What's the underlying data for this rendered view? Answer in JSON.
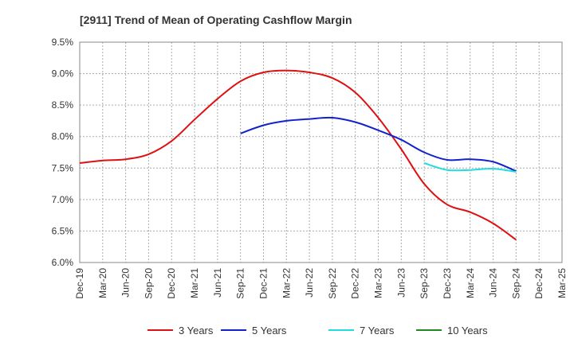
{
  "chart_data": {
    "type": "line",
    "title": "[2911]  Trend of Mean of Operating Cashflow Margin",
    "xlabel": "",
    "ylabel": "",
    "ylim": [
      6.0,
      9.5
    ],
    "y_ticks": [
      "6.0%",
      "6.5%",
      "7.0%",
      "7.5%",
      "8.0%",
      "8.5%",
      "9.0%",
      "9.5%"
    ],
    "categories": [
      "Dec-19",
      "Mar-20",
      "Jun-20",
      "Sep-20",
      "Dec-20",
      "Mar-21",
      "Jun-21",
      "Sep-21",
      "Dec-21",
      "Mar-22",
      "Jun-22",
      "Sep-22",
      "Dec-22",
      "Mar-23",
      "Jun-23",
      "Sep-23",
      "Dec-23",
      "Mar-24",
      "Jun-24",
      "Sep-24",
      "Dec-24",
      "Mar-25"
    ],
    "grid": true,
    "legend_position": "bottom",
    "series": [
      {
        "name": "3 Years",
        "color": "#dd1111",
        "values": [
          7.58,
          7.62,
          7.64,
          7.72,
          7.93,
          8.27,
          8.6,
          8.88,
          9.02,
          9.05,
          9.02,
          8.93,
          8.7,
          8.3,
          7.8,
          7.25,
          6.92,
          6.8,
          6.62,
          6.36,
          null,
          null
        ]
      },
      {
        "name": "5 Years",
        "color": "#1122cc",
        "values": [
          null,
          null,
          null,
          null,
          null,
          null,
          null,
          8.05,
          8.18,
          8.25,
          8.28,
          8.3,
          8.23,
          8.1,
          7.95,
          7.75,
          7.63,
          7.64,
          7.6,
          7.45,
          null,
          null
        ]
      },
      {
        "name": "7 Years",
        "color": "#22dddd",
        "values": [
          null,
          null,
          null,
          null,
          null,
          null,
          null,
          null,
          null,
          null,
          null,
          null,
          null,
          null,
          null,
          7.58,
          7.47,
          7.47,
          7.49,
          7.44,
          null,
          null
        ]
      },
      {
        "name": "10 Years",
        "color": "#228822",
        "values": [
          null,
          null,
          null,
          null,
          null,
          null,
          null,
          null,
          null,
          null,
          null,
          null,
          null,
          null,
          null,
          null,
          null,
          null,
          null,
          null,
          null,
          null
        ]
      }
    ]
  }
}
